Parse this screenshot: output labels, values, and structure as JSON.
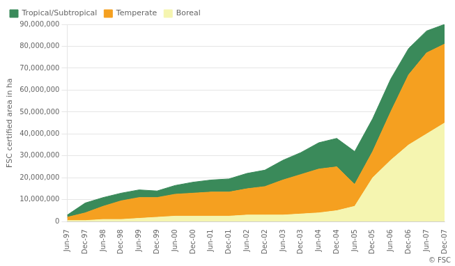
{
  "chart_data": {
    "type": "area",
    "stacked": true,
    "categories": [
      "Jun-97",
      "Dec-97",
      "Jun-98",
      "Dec-98",
      "Jun-99",
      "Dec-99",
      "Jun-00",
      "Dec-00",
      "Jun-01",
      "Dec-01",
      "Jun-02",
      "Dec-02",
      "Jun-03",
      "Dec-03",
      "Jun-04",
      "Dec-04",
      "Jun-05",
      "Dec-05",
      "Jun-06",
      "Dec-06",
      "Jun-07",
      "Dec-07"
    ],
    "series": [
      {
        "name": "Boreal",
        "color": "#f5f5b0",
        "values": [
          500000,
          500000,
          1000000,
          1000000,
          1500000,
          2000000,
          2500000,
          2500000,
          2500000,
          2500000,
          3000000,
          3000000,
          3000000,
          3500000,
          4000000,
          5000000,
          7000000,
          20000000,
          28000000,
          35000000,
          40000000,
          45000000
        ]
      },
      {
        "name": "Temperate",
        "color": "#f5a020",
        "values": [
          1500000,
          3500000,
          6000000,
          8500000,
          9500000,
          9000000,
          10000000,
          10500000,
          11000000,
          11000000,
          12000000,
          13000000,
          16000000,
          18000000,
          20000000,
          20000000,
          10000000,
          12000000,
          22000000,
          32000000,
          37000000,
          36000000
        ]
      },
      {
        "name": "Tropical/Subtropical",
        "color": "#3a8a5a",
        "values": [
          1000000,
          4500000,
          4000000,
          3500000,
          3500000,
          3000000,
          4000000,
          5000000,
          5500000,
          6000000,
          7000000,
          7500000,
          9000000,
          10000000,
          12000000,
          13000000,
          15000000,
          15000000,
          15000000,
          12000000,
          10000000,
          9000000
        ]
      }
    ],
    "ylabel": "FSC certified area in ha",
    "ylim": [
      0,
      90000000
    ],
    "yticks": [
      0,
      {
        "value": 10000000,
        "label": "10,000,000"
      },
      {
        "value": 20000000,
        "label": "20,000,000"
      },
      {
        "value": 30000000,
        "label": "30,000,000"
      },
      {
        "value": 40000000,
        "label": "40,000,000"
      },
      {
        "value": 50000000,
        "label": "50,000,000"
      },
      {
        "value": 60000000,
        "label": "60,000,000"
      },
      {
        "value": 70000000,
        "label": "70,000,000"
      },
      {
        "value": 80000000,
        "label": "80,000,000"
      },
      {
        "value": 90000000,
        "label": "90,000,000"
      }
    ],
    "grid": true,
    "legend": "upper left",
    "annotation": "© FSC"
  }
}
